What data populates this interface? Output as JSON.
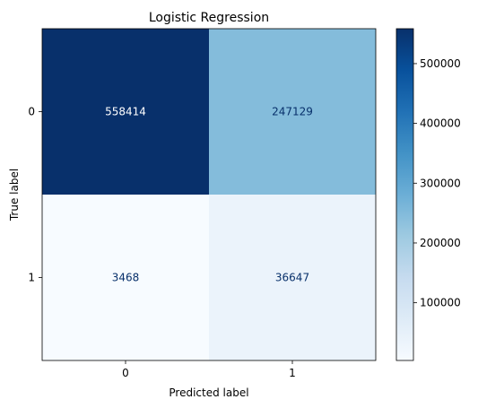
{
  "chart_data": {
    "type": "heatmap",
    "title": "Logistic Regression",
    "xlabel": "Predicted label",
    "ylabel": "True label",
    "x_categories": [
      "0",
      "1"
    ],
    "y_categories": [
      "0",
      "1"
    ],
    "values": [
      [
        558414,
        247129
      ],
      [
        3468,
        36647
      ]
    ],
    "colormap": "Blues",
    "colorbar_range": [
      3468,
      558414
    ],
    "colorbar_ticks": [
      100000,
      200000,
      300000,
      400000,
      500000
    ],
    "colorbar_tick_labels": [
      "100000",
      "200000",
      "300000",
      "400000",
      "500000"
    ],
    "grid": false
  }
}
